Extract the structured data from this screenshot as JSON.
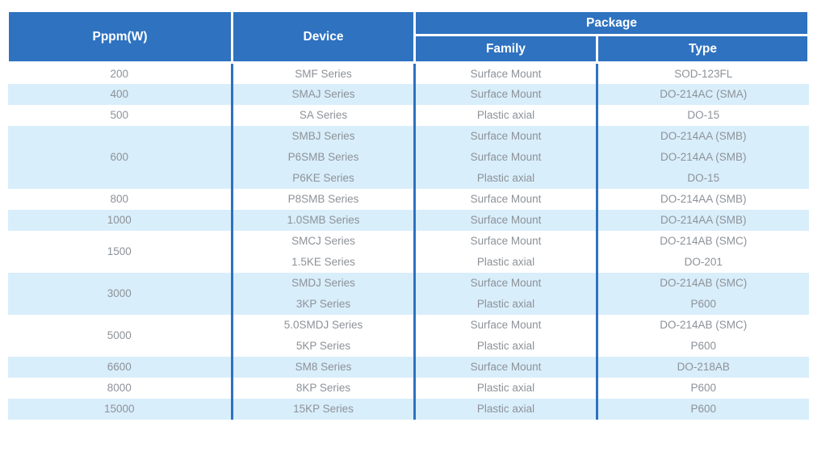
{
  "header": {
    "power": "Pppm(W)",
    "device": "Device",
    "package": "Package",
    "family": "Family",
    "type": "Type"
  },
  "colors": {
    "header_bg": "#2e72c0",
    "stripe_bg": "#d9eefb",
    "divider": "#2e72c0",
    "body_text": "#8d9298"
  },
  "groups": [
    {
      "power": "200",
      "rows": [
        {
          "device": "SMF Series",
          "family": "Surface Mount",
          "type": "SOD-123FL"
        }
      ]
    },
    {
      "power": "400",
      "rows": [
        {
          "device": "SMAJ Series",
          "family": "Surface Mount",
          "type": "DO-214AC (SMA)"
        }
      ]
    },
    {
      "power": "500",
      "rows": [
        {
          "device": "SA Series",
          "family": "Plastic axial",
          "type": "DO-15"
        }
      ]
    },
    {
      "power": "600",
      "rows": [
        {
          "device": "SMBJ Series",
          "family": "Surface Mount",
          "type": "DO-214AA (SMB)"
        },
        {
          "device": "P6SMB Series",
          "family": "Surface Mount",
          "type": "DO-214AA (SMB)"
        },
        {
          "device": "P6KE Series",
          "family": "Plastic axial",
          "type": "DO-15"
        }
      ]
    },
    {
      "power": "800",
      "rows": [
        {
          "device": "P8SMB Series",
          "family": "Surface Mount",
          "type": "DO-214AA (SMB)"
        }
      ]
    },
    {
      "power": "1000",
      "rows": [
        {
          "device": "1.0SMB Series",
          "family": "Surface Mount",
          "type": "DO-214AA (SMB)"
        }
      ]
    },
    {
      "power": "1500",
      "rows": [
        {
          "device": "SMCJ Series",
          "family": "Surface Mount",
          "type": "DO-214AB (SMC)"
        },
        {
          "device": "1.5KE Series",
          "family": "Plastic axial",
          "type": "DO-201"
        }
      ]
    },
    {
      "power": "3000",
      "rows": [
        {
          "device": "SMDJ Series",
          "family": "Surface Mount",
          "type": "DO-214AB (SMC)"
        },
        {
          "device": "3KP Series",
          "family": "Plastic axial",
          "type": "P600"
        }
      ]
    },
    {
      "power": "5000",
      "rows": [
        {
          "device": "5.0SMDJ Series",
          "family": "Surface Mount",
          "type": "DO-214AB (SMC)"
        },
        {
          "device": "5KP Series",
          "family": "Plastic axial",
          "type": "P600"
        }
      ]
    },
    {
      "power": "6600",
      "rows": [
        {
          "device": "SM8 Series",
          "family": "Surface Mount",
          "type": "DO-218AB"
        }
      ]
    },
    {
      "power": "8000",
      "rows": [
        {
          "device": "8KP Series",
          "family": "Plastic axial",
          "type": "P600"
        }
      ]
    },
    {
      "power": "15000",
      "rows": [
        {
          "device": "15KP Series",
          "family": "Plastic axial",
          "type": "P600"
        }
      ]
    }
  ]
}
